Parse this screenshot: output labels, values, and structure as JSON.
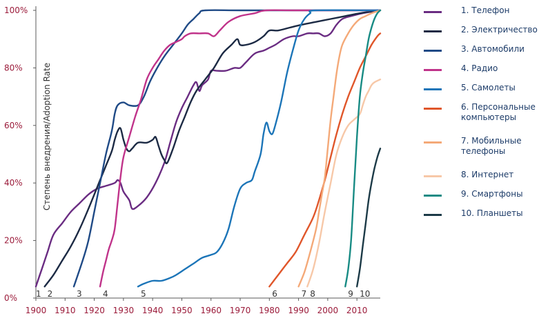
{
  "chart_data": {
    "type": "line",
    "ylabel": "Степень внедрения/Adoption Rate",
    "xlim": [
      1900,
      2018
    ],
    "ylim": [
      0,
      100
    ],
    "x_ticks": [
      "1900",
      "1910",
      "1920",
      "1930",
      "1940",
      "1950",
      "1960",
      "1970",
      "1980",
      "1990",
      "2000",
      "2010"
    ],
    "y_ticks": [
      "0%",
      "20%",
      "40%",
      "60%",
      "80%",
      "100%"
    ],
    "series": [
      {
        "name": "Телефон",
        "legend_label": "1. Телефон",
        "start_label": "1",
        "color": "#6a2c82",
        "points": [
          [
            1900,
            4
          ],
          [
            1902,
            10
          ],
          [
            1904,
            16
          ],
          [
            1906,
            22
          ],
          [
            1909,
            26
          ],
          [
            1912,
            30
          ],
          [
            1915,
            33
          ],
          [
            1918,
            36
          ],
          [
            1921,
            38
          ],
          [
            1924,
            39
          ],
          [
            1927,
            40
          ],
          [
            1928,
            41
          ],
          [
            1929,
            40
          ],
          [
            1930,
            37
          ],
          [
            1932,
            34
          ],
          [
            1933,
            31
          ],
          [
            1935,
            32
          ],
          [
            1938,
            35
          ],
          [
            1941,
            40
          ],
          [
            1944,
            47
          ],
          [
            1946,
            54
          ],
          [
            1948,
            61
          ],
          [
            1950,
            66
          ],
          [
            1952,
            70
          ],
          [
            1954,
            74
          ],
          [
            1955,
            75
          ],
          [
            1956,
            72
          ],
          [
            1957,
            74
          ],
          [
            1959,
            76
          ],
          [
            1960,
            79
          ],
          [
            1962,
            79
          ],
          [
            1965,
            79
          ],
          [
            1968,
            80
          ],
          [
            1970,
            80
          ],
          [
            1972,
            82
          ],
          [
            1975,
            85
          ],
          [
            1978,
            86
          ],
          [
            1980,
            87
          ],
          [
            1982,
            88
          ],
          [
            1985,
            90
          ],
          [
            1988,
            91
          ],
          [
            1990,
            91
          ],
          [
            1993,
            92
          ],
          [
            1995,
            92
          ],
          [
            1997,
            92
          ],
          [
            1999,
            91
          ],
          [
            2001,
            92
          ],
          [
            2003,
            95
          ],
          [
            2005,
            97
          ],
          [
            2008,
            98
          ],
          [
            2012,
            99
          ],
          [
            2018,
            100
          ]
        ]
      },
      {
        "name": "Электричество",
        "legend_label": "2. Электричество",
        "start_label": "2",
        "color": "#1c2a44",
        "points": [
          [
            1903,
            4
          ],
          [
            1906,
            8
          ],
          [
            1909,
            13
          ],
          [
            1912,
            18
          ],
          [
            1915,
            24
          ],
          [
            1918,
            31
          ],
          [
            1920,
            36
          ],
          [
            1922,
            41
          ],
          [
            1924,
            46
          ],
          [
            1926,
            51
          ],
          [
            1927,
            55
          ],
          [
            1928,
            58
          ],
          [
            1929,
            59
          ],
          [
            1930,
            55
          ],
          [
            1931,
            52
          ],
          [
            1932,
            51
          ],
          [
            1933,
            52
          ],
          [
            1935,
            54
          ],
          [
            1938,
            54
          ],
          [
            1940,
            55
          ],
          [
            1941,
            56
          ],
          [
            1942,
            53
          ],
          [
            1943,
            50
          ],
          [
            1944,
            48
          ],
          [
            1945,
            47
          ],
          [
            1947,
            52
          ],
          [
            1949,
            58
          ],
          [
            1951,
            63
          ],
          [
            1953,
            68
          ],
          [
            1955,
            72
          ],
          [
            1958,
            76
          ],
          [
            1961,
            80
          ],
          [
            1964,
            85
          ],
          [
            1967,
            88
          ],
          [
            1969,
            90
          ],
          [
            1970,
            88
          ],
          [
            1972,
            88
          ],
          [
            1975,
            89
          ],
          [
            1978,
            91
          ],
          [
            1980,
            93
          ],
          [
            1983,
            93
          ],
          [
            1987,
            94
          ],
          [
            1991,
            95
          ],
          [
            1996,
            96
          ],
          [
            2001,
            97
          ],
          [
            2006,
            98
          ],
          [
            2011,
            99
          ],
          [
            2018,
            100
          ]
        ]
      },
      {
        "name": "Автомобили",
        "legend_label": "3. Автомобили",
        "start_label": "3",
        "color": "#1f4a86",
        "points": [
          [
            1913,
            4
          ],
          [
            1916,
            13
          ],
          [
            1918,
            20
          ],
          [
            1920,
            30
          ],
          [
            1922,
            40
          ],
          [
            1924,
            50
          ],
          [
            1926,
            58
          ],
          [
            1927,
            64
          ],
          [
            1928,
            67
          ],
          [
            1930,
            68
          ],
          [
            1932,
            67
          ],
          [
            1935,
            67
          ],
          [
            1937,
            70
          ],
          [
            1939,
            75
          ],
          [
            1941,
            79
          ],
          [
            1944,
            84
          ],
          [
            1947,
            88
          ],
          [
            1950,
            92
          ],
          [
            1952,
            95
          ],
          [
            1954,
            97
          ],
          [
            1956,
            99
          ],
          [
            1958,
            100
          ],
          [
            1970,
            100
          ],
          [
            1990,
            100
          ],
          [
            2018,
            100
          ]
        ]
      },
      {
        "name": "Радио",
        "legend_label": "4. Радио",
        "start_label": "4",
        "color": "#c0338a",
        "points": [
          [
            1922,
            4
          ],
          [
            1923,
            9
          ],
          [
            1924,
            13
          ],
          [
            1925,
            17
          ],
          [
            1926,
            20
          ],
          [
            1927,
            24
          ],
          [
            1928,
            33
          ],
          [
            1929,
            42
          ],
          [
            1930,
            49
          ],
          [
            1932,
            56
          ],
          [
            1934,
            63
          ],
          [
            1936,
            69
          ],
          [
            1938,
            76
          ],
          [
            1940,
            80
          ],
          [
            1942,
            83
          ],
          [
            1944,
            86
          ],
          [
            1946,
            88
          ],
          [
            1948,
            89
          ],
          [
            1950,
            90
          ],
          [
            1951,
            91
          ],
          [
            1953,
            92
          ],
          [
            1956,
            92
          ],
          [
            1959,
            92
          ],
          [
            1961,
            91
          ],
          [
            1963,
            93
          ],
          [
            1966,
            96
          ],
          [
            1970,
            98
          ],
          [
            1975,
            99
          ],
          [
            1979,
            100
          ],
          [
            1990,
            100
          ],
          [
            2018,
            100
          ]
        ]
      },
      {
        "name": "Самолеты",
        "legend_label": "5. Самолеты",
        "start_label": "5",
        "color": "#1c75b8",
        "points": [
          [
            1935,
            4
          ],
          [
            1937,
            5
          ],
          [
            1940,
            6
          ],
          [
            1943,
            6
          ],
          [
            1946,
            7
          ],
          [
            1948,
            8
          ],
          [
            1951,
            10
          ],
          [
            1954,
            12
          ],
          [
            1957,
            14
          ],
          [
            1960,
            15
          ],
          [
            1962,
            16
          ],
          [
            1964,
            19
          ],
          [
            1966,
            24
          ],
          [
            1968,
            32
          ],
          [
            1970,
            38
          ],
          [
            1972,
            40
          ],
          [
            1974,
            41
          ],
          [
            1975,
            44
          ],
          [
            1977,
            50
          ],
          [
            1978,
            57
          ],
          [
            1979,
            61
          ],
          [
            1980,
            58
          ],
          [
            1981,
            57
          ],
          [
            1982,
            60
          ],
          [
            1984,
            68
          ],
          [
            1986,
            78
          ],
          [
            1988,
            86
          ],
          [
            1990,
            93
          ],
          [
            1992,
            97
          ],
          [
            1994,
            99
          ],
          [
            1996,
            100
          ],
          [
            2018,
            100
          ]
        ]
      },
      {
        "name": "Персональные компьютеры",
        "legend_label": "6. Персональные компьютеры",
        "start_label": "6",
        "color": "#e0562a",
        "points": [
          [
            1980,
            4
          ],
          [
            1983,
            8
          ],
          [
            1986,
            12
          ],
          [
            1989,
            16
          ],
          [
            1992,
            22
          ],
          [
            1995,
            28
          ],
          [
            1997,
            34
          ],
          [
            1999,
            41
          ],
          [
            2001,
            49
          ],
          [
            2003,
            57
          ],
          [
            2005,
            64
          ],
          [
            2007,
            70
          ],
          [
            2009,
            75
          ],
          [
            2011,
            80
          ],
          [
            2013,
            84
          ],
          [
            2015,
            88
          ],
          [
            2017,
            91
          ],
          [
            2018,
            92
          ]
        ]
      },
      {
        "name": "Мобильные телефоны",
        "legend_label": "7. Мобильные телефоны",
        "start_label": "7",
        "color": "#f4a978",
        "points": [
          [
            1990,
            4
          ],
          [
            1992,
            9
          ],
          [
            1994,
            16
          ],
          [
            1996,
            24
          ],
          [
            1997,
            30
          ],
          [
            1998,
            36
          ],
          [
            1999,
            42
          ],
          [
            2000,
            52
          ],
          [
            2001,
            62
          ],
          [
            2002,
            70
          ],
          [
            2003,
            78
          ],
          [
            2004,
            84
          ],
          [
            2005,
            88
          ],
          [
            2007,
            92
          ],
          [
            2009,
            95
          ],
          [
            2011,
            97
          ],
          [
            2013,
            98
          ],
          [
            2015,
            99
          ],
          [
            2018,
            100
          ]
        ]
      },
      {
        "name": "Интернет",
        "legend_label": "8. Интернет",
        "start_label": "8",
        "color": "#f7c8a8",
        "points": [
          [
            1993,
            4
          ],
          [
            1995,
            10
          ],
          [
            1997,
            19
          ],
          [
            1999,
            30
          ],
          [
            2001,
            40
          ],
          [
            2003,
            50
          ],
          [
            2005,
            56
          ],
          [
            2007,
            60
          ],
          [
            2009,
            62
          ],
          [
            2011,
            64
          ],
          [
            2012,
            67
          ],
          [
            2013,
            70
          ],
          [
            2014,
            72
          ],
          [
            2015,
            74
          ],
          [
            2016,
            75
          ],
          [
            2018,
            76
          ]
        ]
      },
      {
        "name": "Смартфоны",
        "legend_label": "9. Смартфоны",
        "start_label": "9",
        "color": "#188b84",
        "points": [
          [
            2006,
            4
          ],
          [
            2007,
            10
          ],
          [
            2008,
            20
          ],
          [
            2009,
            38
          ],
          [
            2010,
            56
          ],
          [
            2011,
            70
          ],
          [
            2012,
            78
          ],
          [
            2013,
            84
          ],
          [
            2014,
            90
          ],
          [
            2015,
            94
          ],
          [
            2016,
            97
          ],
          [
            2017,
            99
          ],
          [
            2018,
            100
          ]
        ]
      },
      {
        "name": "Планшеты",
        "legend_label": "10. Планшеты",
        "start_label": "10",
        "color": "#1c3a47",
        "points": [
          [
            2010,
            4
          ],
          [
            2011,
            10
          ],
          [
            2012,
            18
          ],
          [
            2013,
            26
          ],
          [
            2014,
            34
          ],
          [
            2015,
            40
          ],
          [
            2016,
            45
          ],
          [
            2017,
            49
          ],
          [
            2018,
            52
          ]
        ]
      }
    ]
  }
}
